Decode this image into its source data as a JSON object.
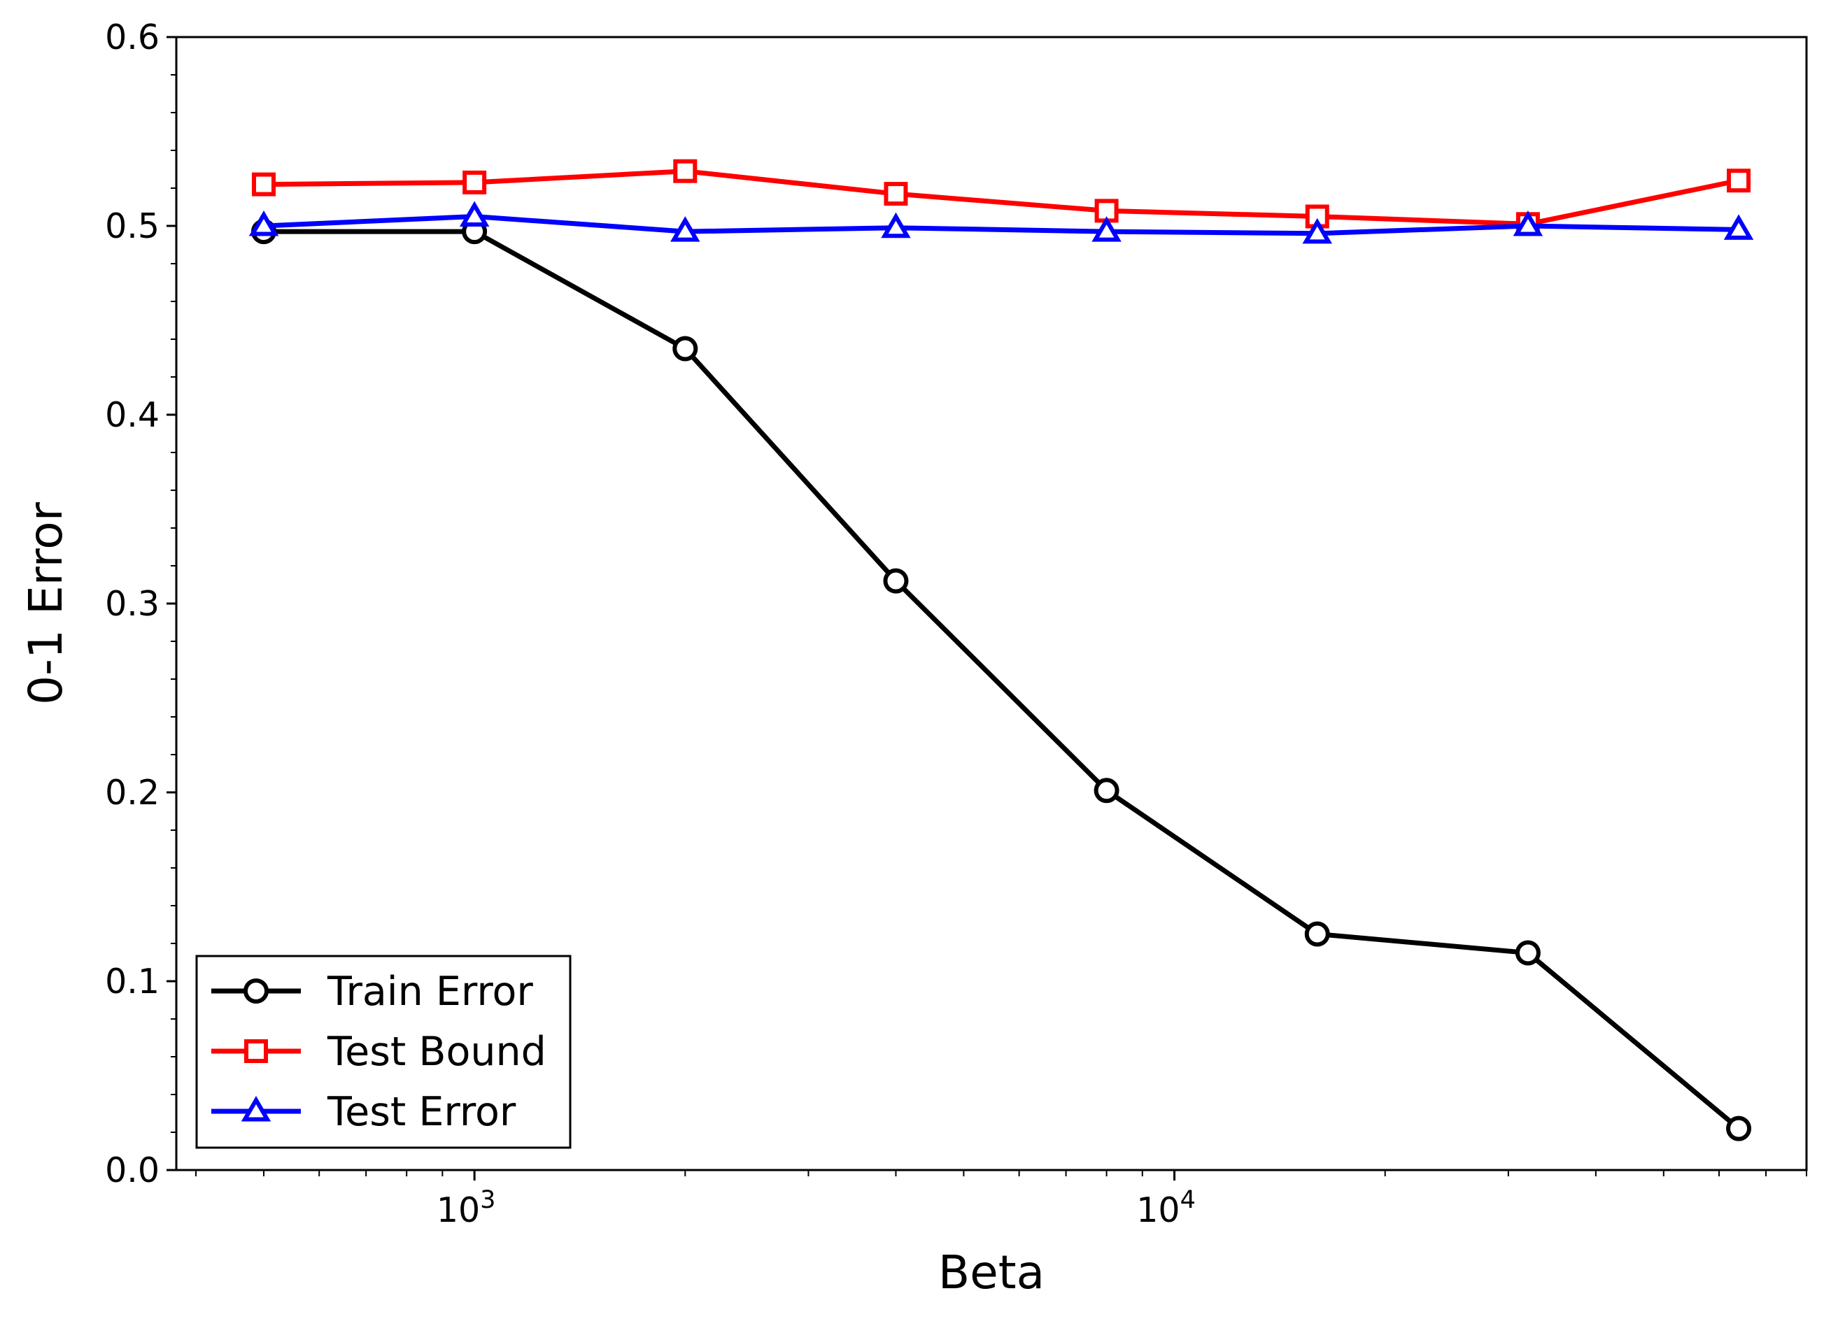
{
  "chart_data": {
    "type": "line",
    "xlabel": "Beta",
    "ylabel": "0-1 Error",
    "xscale": "log",
    "xlim": [
      375,
      80000
    ],
    "ylim": [
      0,
      0.6
    ],
    "x_ticks": [
      {
        "value": 1000,
        "base": "10",
        "exp": "3"
      },
      {
        "value": 10000,
        "base": "10",
        "exp": "4"
      }
    ],
    "y_ticks": [
      {
        "value": 0.0,
        "label": "0.0"
      },
      {
        "value": 0.1,
        "label": "0.1"
      },
      {
        "value": 0.2,
        "label": "0.2"
      },
      {
        "value": 0.3,
        "label": "0.3"
      },
      {
        "value": 0.4,
        "label": "0.4"
      },
      {
        "value": 0.5,
        "label": "0.5"
      },
      {
        "value": 0.6,
        "label": "0.6"
      }
    ],
    "x": [
      500,
      1000,
      2000,
      4000,
      8000,
      16000,
      32000,
      64000
    ],
    "series": [
      {
        "name": "Train Error",
        "color": "#000000",
        "marker": "circle",
        "values": [
          0.497,
          0.497,
          0.435,
          0.312,
          0.201,
          0.125,
          0.115,
          0.022
        ]
      },
      {
        "name": "Test Bound",
        "color": "#ff0000",
        "marker": "square",
        "values": [
          0.522,
          0.523,
          0.529,
          0.517,
          0.508,
          0.505,
          0.501,
          0.524
        ]
      },
      {
        "name": "Test Error",
        "color": "#0000ff",
        "marker": "triangle",
        "values": [
          0.5,
          0.505,
          0.497,
          0.499,
          0.497,
          0.496,
          0.5,
          0.498
        ]
      }
    ],
    "legend_position": "lower-left",
    "grid": false
  }
}
